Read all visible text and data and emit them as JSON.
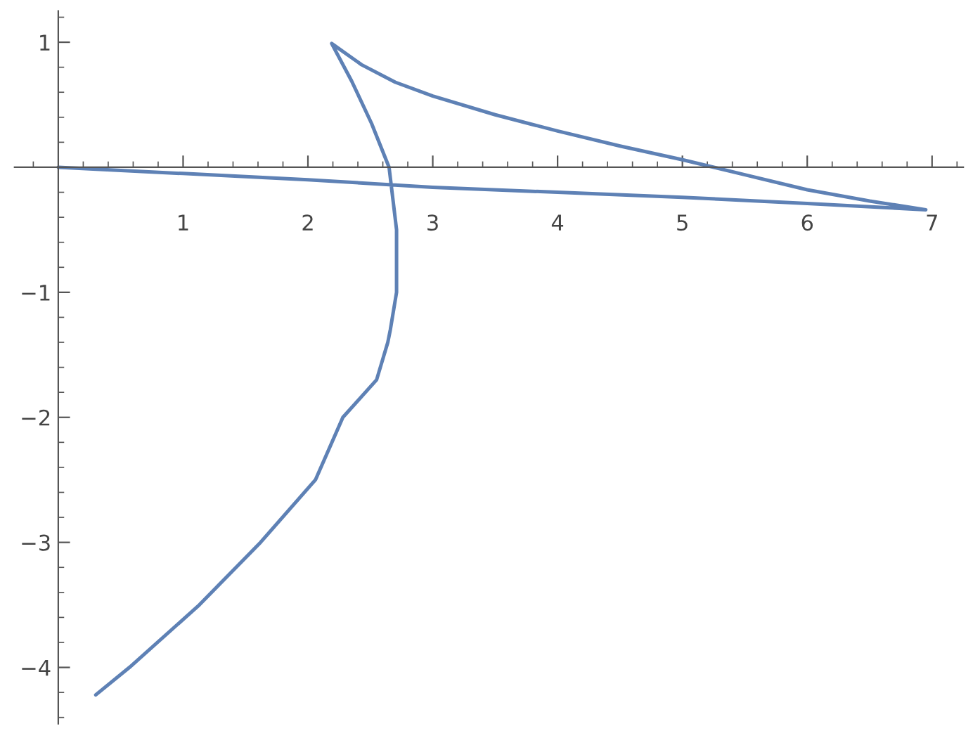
{
  "chart_data": {
    "type": "line",
    "x": [
      0,
      1,
      2,
      3,
      4,
      5,
      6,
      6.95,
      6.5,
      6,
      5.5,
      5,
      4.5,
      4,
      3.5,
      3,
      2.7,
      2.43,
      2.19,
      2.35,
      2.51,
      2.65,
      2.71,
      2.71,
      2.66,
      2.64,
      2.55,
      2.28,
      2.06,
      1.62,
      1.13,
      0.57,
      0.3
    ],
    "series": [
      {
        "color": "#5e81b5",
        "values": [
          0,
          -0.05,
          -0.1,
          -0.16,
          -0.2,
          -0.24,
          -0.29,
          -0.34,
          -0.27,
          -0.18,
          -0.06,
          0.06,
          0.17,
          0.29,
          0.42,
          0.57,
          0.68,
          0.82,
          0.99,
          0.69,
          0.35,
          0,
          -0.5,
          -1.0,
          -1.3,
          -1.4,
          -1.7,
          -2,
          -2.5,
          -3,
          -3.5,
          -4,
          -4.22
        ]
      }
    ],
    "xlim": [
      -0.35,
      7.25
    ],
    "ylim": [
      -4.45,
      1.25
    ],
    "xticks": [
      1,
      2,
      3,
      4,
      5,
      6,
      7
    ],
    "yticks": [
      -4,
      -3,
      -2,
      -1,
      1
    ],
    "grid": false,
    "marker": "none",
    "line_style": "solid"
  }
}
